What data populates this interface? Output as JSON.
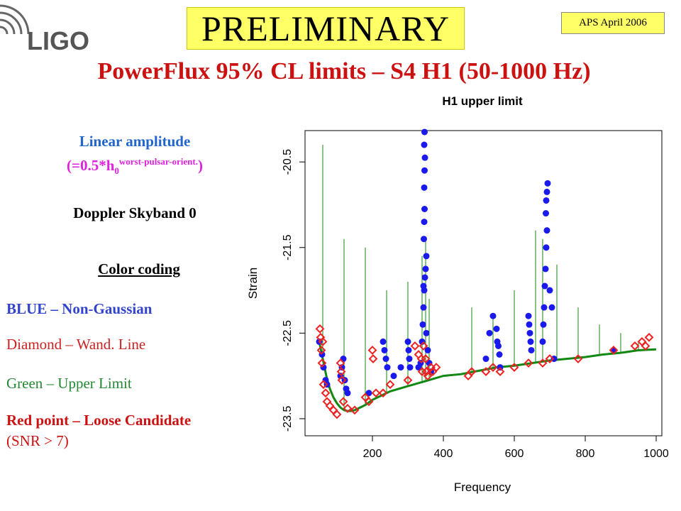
{
  "header": {
    "logo_text": "LIGO",
    "preliminary": "PRELIMINARY",
    "conference": "APS April 2006",
    "title": "PowerFlux 95% CL limits – S4 H1 (50-1000 Hz)"
  },
  "left_panel": {
    "linear_amplitude": "Linear amplitude",
    "orient_prefix": "(=0.5*h",
    "orient_sub": "0",
    "orient_sup": "worst-pulsar-orient.",
    "orient_suffix": ")",
    "skyband": "Doppler Skyband 0",
    "color_coding": "Color coding",
    "legend": {
      "blue": "BLUE – Non-Gaussian",
      "diamond": "Diamond – Wand. Line",
      "green": "Green – Upper Limit",
      "red": "Red point – Loose Candidate",
      "snr": "(SNR > 7)"
    }
  },
  "colors": {
    "title_red": "#cc1111",
    "prelim_yellow": "#ffff66",
    "blue_points": "#1a1aee",
    "red_diamonds": "#ee2222",
    "green_line": "#118811",
    "logo_gray": "#555555"
  },
  "chart_data": {
    "type": "scatter",
    "title": "H1 upper limit",
    "xlabel": "Frequency",
    "ylabel": "Strain",
    "xlim": [
      50,
      1000
    ],
    "ylim": [
      -23.6,
      -20.2
    ],
    "xticks": [
      200,
      400,
      600,
      800,
      1000
    ],
    "yticks": [
      -20.5,
      -21.5,
      -22.5,
      -23.5
    ],
    "grid": false,
    "series": [
      {
        "kind": "line",
        "color": "#118811",
        "x": [
          50,
          60,
          70,
          80,
          90,
          100,
          110,
          120,
          130,
          140,
          150,
          160,
          180,
          200,
          250,
          300,
          350,
          400,
          450,
          500,
          550,
          600,
          650,
          700,
          750,
          800,
          850,
          900,
          950,
          1000
        ],
        "y": [
          -22.6,
          -22.8,
          -23.0,
          -23.15,
          -23.25,
          -23.32,
          -23.37,
          -23.4,
          -23.41,
          -23.41,
          -23.4,
          -23.38,
          -23.34,
          -23.28,
          -23.18,
          -23.12,
          -23.06,
          -23.0,
          -22.98,
          -22.94,
          -22.9,
          -22.88,
          -22.85,
          -22.82,
          -22.8,
          -22.78,
          -22.75,
          -22.73,
          -22.7,
          -22.69
        ]
      },
      {
        "kind": "spikes",
        "color": "#118811",
        "points": [
          [
            60,
            -20.3
          ],
          [
            120,
            -21.4
          ],
          [
            180,
            -21.5
          ],
          [
            240,
            -22.0
          ],
          [
            300,
            -21.9
          ],
          [
            340,
            -21.6
          ],
          [
            350,
            -21.4
          ],
          [
            360,
            -22.1
          ],
          [
            480,
            -22.2
          ],
          [
            540,
            -22.3
          ],
          [
            600,
            -22.0
          ],
          [
            660,
            -21.3
          ],
          [
            680,
            -21.4
          ],
          [
            720,
            -21.7
          ],
          [
            780,
            -22.2
          ],
          [
            840,
            -22.4
          ],
          [
            900,
            -22.5
          ],
          [
            950,
            -22.6
          ]
        ]
      },
      {
        "kind": "scatter-blue",
        "color": "#1a1aee",
        "points": [
          [
            50,
            -22.6
          ],
          [
            58,
            -22.75
          ],
          [
            62,
            -22.9
          ],
          [
            68,
            -23.05
          ],
          [
            72,
            -23.1
          ],
          [
            110,
            -23.0
          ],
          [
            114,
            -22.9
          ],
          [
            118,
            -22.8
          ],
          [
            122,
            -23.05
          ],
          [
            126,
            -23.15
          ],
          [
            130,
            -23.2
          ],
          [
            190,
            -23.2
          ],
          [
            230,
            -22.6
          ],
          [
            234,
            -22.7
          ],
          [
            238,
            -22.8
          ],
          [
            242,
            -22.9
          ],
          [
            260,
            -23.0
          ],
          [
            280,
            -22.9
          ],
          [
            300,
            -22.6
          ],
          [
            302,
            -22.7
          ],
          [
            304,
            -22.8
          ],
          [
            306,
            -22.9
          ],
          [
            330,
            -22.9
          ],
          [
            336,
            -22.85
          ],
          [
            340,
            -22.6
          ],
          [
            342,
            -22.4
          ],
          [
            344,
            -22.2
          ],
          [
            346,
            -22.0
          ],
          [
            348,
            -21.85
          ],
          [
            350,
            -21.75
          ],
          [
            352,
            -21.6
          ],
          [
            345,
            -21.4
          ],
          [
            346,
            -21.2
          ],
          [
            347,
            -21.05
          ],
          [
            346,
            -20.8
          ],
          [
            347,
            -20.6
          ],
          [
            348,
            -20.45
          ],
          [
            346,
            -20.3
          ],
          [
            347,
            -20.15
          ],
          [
            344,
            -21.95
          ],
          [
            352,
            -22.5
          ],
          [
            356,
            -22.7
          ],
          [
            360,
            -22.85
          ],
          [
            365,
            -22.95
          ],
          [
            520,
            -22.8
          ],
          [
            530,
            -22.5
          ],
          [
            540,
            -22.3
          ],
          [
            550,
            -22.45
          ],
          [
            552,
            -22.6
          ],
          [
            555,
            -22.65
          ],
          [
            558,
            -22.75
          ],
          [
            560,
            -22.9
          ],
          [
            640,
            -22.3
          ],
          [
            642,
            -22.4
          ],
          [
            644,
            -22.5
          ],
          [
            646,
            -22.6
          ],
          [
            648,
            -22.7
          ],
          [
            680,
            -22.6
          ],
          [
            682,
            -22.4
          ],
          [
            684,
            -22.2
          ],
          [
            686,
            -21.95
          ],
          [
            688,
            -21.75
          ],
          [
            690,
            -21.5
          ],
          [
            692,
            -21.3
          ],
          [
            689,
            -21.1
          ],
          [
            690,
            -20.95
          ],
          [
            692,
            -20.85
          ],
          [
            694,
            -20.75
          ],
          [
            700,
            -22.0
          ],
          [
            706,
            -22.2
          ],
          [
            712,
            -22.8
          ],
          [
            880,
            -22.7
          ]
        ]
      },
      {
        "kind": "diamond-red",
        "color": "#ee2222",
        "points": [
          [
            52,
            -22.45
          ],
          [
            54,
            -22.55
          ],
          [
            56,
            -22.7
          ],
          [
            58,
            -22.85
          ],
          [
            60,
            -22.6
          ],
          [
            62,
            -23.1
          ],
          [
            68,
            -23.2
          ],
          [
            72,
            -23.3
          ],
          [
            80,
            -23.35
          ],
          [
            90,
            -23.4
          ],
          [
            100,
            -23.45
          ],
          [
            110,
            -22.85
          ],
          [
            112,
            -22.95
          ],
          [
            114,
            -23.05
          ],
          [
            118,
            -23.3
          ],
          [
            130,
            -23.38
          ],
          [
            150,
            -23.4
          ],
          [
            180,
            -23.25
          ],
          [
            190,
            -23.3
          ],
          [
            200,
            -22.7
          ],
          [
            202,
            -22.8
          ],
          [
            210,
            -23.2
          ],
          [
            230,
            -23.2
          ],
          [
            250,
            -23.1
          ],
          [
            300,
            -23.05
          ],
          [
            320,
            -22.65
          ],
          [
            330,
            -22.75
          ],
          [
            338,
            -22.8
          ],
          [
            340,
            -22.95
          ],
          [
            344,
            -22.65
          ],
          [
            350,
            -22.8
          ],
          [
            352,
            -22.95
          ],
          [
            356,
            -23.0
          ],
          [
            365,
            -22.9
          ],
          [
            370,
            -22.95
          ],
          [
            380,
            -22.9
          ],
          [
            470,
            -23.0
          ],
          [
            480,
            -22.95
          ],
          [
            520,
            -22.95
          ],
          [
            540,
            -22.9
          ],
          [
            560,
            -22.95
          ],
          [
            600,
            -22.9
          ],
          [
            640,
            -22.85
          ],
          [
            680,
            -22.85
          ],
          [
            700,
            -22.8
          ],
          [
            780,
            -22.8
          ],
          [
            880,
            -22.7
          ],
          [
            940,
            -22.65
          ],
          [
            960,
            -22.6
          ],
          [
            970,
            -22.65
          ],
          [
            980,
            -22.55
          ]
        ]
      }
    ]
  }
}
